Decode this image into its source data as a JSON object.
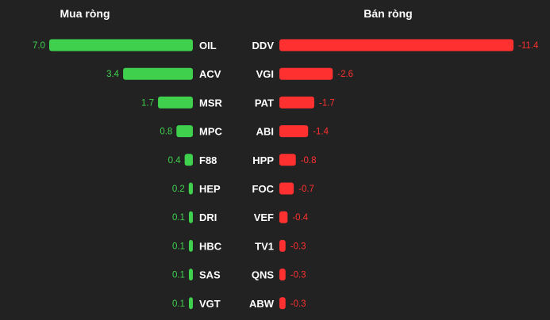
{
  "chart_data": [
    {
      "type": "bar",
      "orientation": "horizontal",
      "title": "Mua ròng",
      "categories": [
        "OIL",
        "ACV",
        "MSR",
        "MPC",
        "F88",
        "HEP",
        "DRI",
        "HBC",
        "SAS",
        "VGT"
      ],
      "values": [
        7.0,
        3.4,
        1.7,
        0.8,
        0.4,
        0.2,
        0.1,
        0.1,
        0.1,
        0.1
      ],
      "value_labels": [
        "7.0",
        "3.4",
        "1.7",
        "0.8",
        "0.4",
        "0.2",
        "0.1",
        "0.1",
        "0.1",
        "0.1"
      ],
      "bar_color": "#3fd14e",
      "bar_direction": "right-to-left"
    },
    {
      "type": "bar",
      "orientation": "horizontal",
      "title": "Bán ròng",
      "categories": [
        "DDV",
        "VGI",
        "PAT",
        "ABI",
        "HPP",
        "FOC",
        "VEF",
        "TV1",
        "QNS",
        "ABW"
      ],
      "values": [
        -11.4,
        -2.6,
        -1.7,
        -1.4,
        -0.8,
        -0.7,
        -0.4,
        -0.3,
        -0.3,
        -0.3
      ],
      "value_labels": [
        "-11.4",
        "-2.6",
        "-1.7",
        "-1.4",
        "-0.8",
        "-0.7",
        "-0.4",
        "-0.3",
        "-0.3",
        "-0.3"
      ],
      "bar_color": "#ff3030",
      "bar_direction": "left-to-right"
    }
  ],
  "background_color": "#222222",
  "text_color": "#ffffff"
}
